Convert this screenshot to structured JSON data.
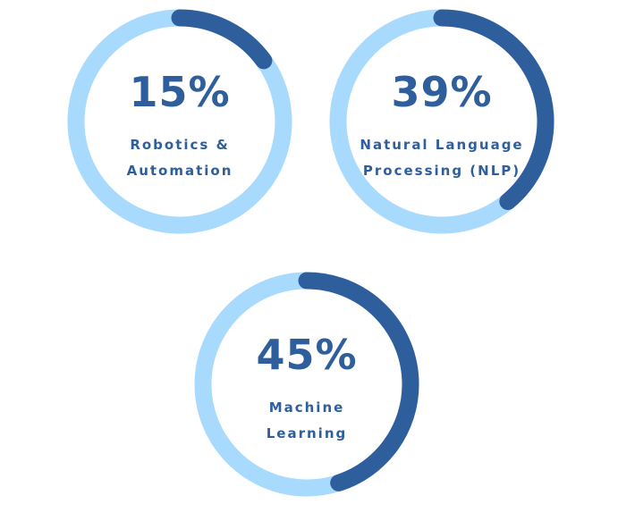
{
  "colors": {
    "track": "#a8dafd",
    "progress": "#2e5e9c",
    "text": "#2e5e9c"
  },
  "chart_data": {
    "type": "gauge",
    "unit": "%",
    "items": [
      {
        "value": 15,
        "value_label": "15%",
        "label_lines": [
          "Robotics &",
          "Automation"
        ]
      },
      {
        "value": 39,
        "value_label": "39%",
        "label_lines": [
          "Natural Language",
          "Processing (NLP)"
        ]
      },
      {
        "value": 45,
        "value_label": "45%",
        "label_lines": [
          "Machine",
          "Learning"
        ]
      }
    ]
  }
}
